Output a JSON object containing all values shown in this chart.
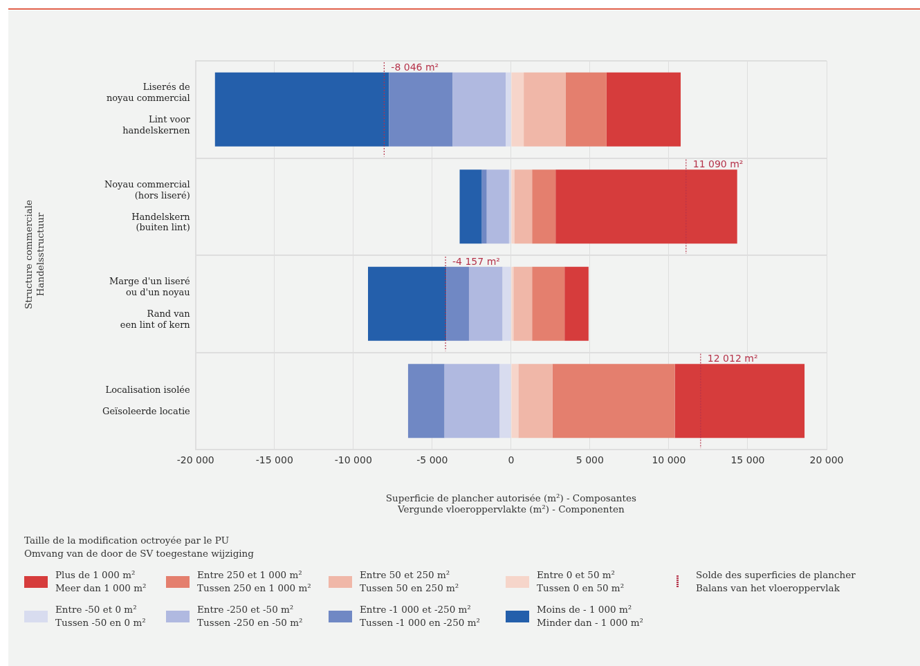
{
  "chart_data": {
    "type": "bar",
    "orientation": "horizontal",
    "stacked": true,
    "xlabel": "Superficie de plancher autorisée (m²) - Composantes\nVergunde vloeroppervlakte (m²) - Componenten",
    "legend_title": "Taille de la modification octroyée par le PU\nOmvang van de door de SV toegestane wijziging",
    "legend": "bottom",
    "grid": true,
    "categories": [
      "Liserés de\nnoyau commercial\n\nLint voor\nhandelskernen",
      "Noyau commercial\n(hors liseré)\n\nHandelskern\n(buiten lint)",
      "Marge d'un liseré\nou d'un noyau\n\nRand van\neen lint of kern",
      "Localisation isolée\n\nGeïsoleerde locatie"
    ],
    "xlim": [
      -20000,
      20000
    ],
    "xticks": [
      {
        "value": -20000,
        "label": "-20 000"
      },
      {
        "value": -15000,
        "label": "-15 000"
      },
      {
        "value": -10000,
        "label": "-10 000"
      },
      {
        "value": -5000,
        "label": "-5 000"
      },
      0,
      {
        "value": 5000,
        "label": "5 000"
      },
      {
        "value": 10000,
        "label": "10 000"
      },
      {
        "value": 15000,
        "label": "15 000"
      },
      {
        "value": 20000,
        "label": "20 000"
      }
    ],
    "series": [
      {
        "name": "Entre 0 et 50 m²\nTussen 0 en 50 m²",
        "color": "#f6d5ca",
        "values": [
          800,
          200,
          150,
          460
        ]
      },
      {
        "name": "Entre 50 et 250 m²\nTussen 50 en 250 m²",
        "color": "#f0b7a8",
        "values": [
          2650,
          1130,
          1180,
          2160
        ]
      },
      {
        "name": "Entre 250 et 1 000 m²\nTussen 250 en 1 000 m²",
        "color": "#e47f6e",
        "values": [
          2600,
          1490,
          2060,
          7760
        ]
      },
      {
        "name": "Plus de 1 000 m²\nMeer dan 1 000 m²",
        "color": "#d63c3c",
        "values": [
          4700,
          11510,
          1520,
          8220
        ]
      },
      {
        "name": "Entre -50 et 0 m²\nTussen -50 en 0 m²",
        "color": "#d8dcef",
        "values": [
          -330,
          -130,
          -540,
          -720
        ]
      },
      {
        "name": "Entre -250 et -50 m²\nTussen -250 en -50 m²",
        "color": "#b0b9e0",
        "values": [
          -3370,
          -1410,
          -2130,
          -3500
        ]
      },
      {
        "name": "Entre -1 000 et -250 m²\nTussen -1 000 en -250 m²",
        "color": "#7088c4",
        "values": [
          -4040,
          -310,
          -1440,
          -2310
        ]
      },
      {
        "name": "Moins de - 1 000 m²\nMinder dan - 1 000 m²",
        "color": "#245fab",
        "values": [
          -11030,
          -1410,
          -4960,
          0
        ]
      }
    ],
    "ref_lines": [
      {
        "axis": "x",
        "value": -8046,
        "label": "-8 046 m²",
        "color": "#b5334a",
        "line_style": "dotted"
      },
      {
        "axis": "x",
        "value": 11090,
        "label": "11 090 m²",
        "color": "#b5334a",
        "line_style": "dotted"
      },
      {
        "axis": "x",
        "value": -4157,
        "label": "-4 157 m²",
        "color": "#b5334a",
        "line_style": "dotted"
      },
      {
        "axis": "x",
        "value": 12012,
        "label": "12 012 m²",
        "color": "#b5334a",
        "line_style": "dotted"
      }
    ],
    "annotations": [
      "Solde des superficies de plancher\nBalans van het vloeroppervlak",
      "Structure commerciale\nHandelsstructuur"
    ]
  }
}
